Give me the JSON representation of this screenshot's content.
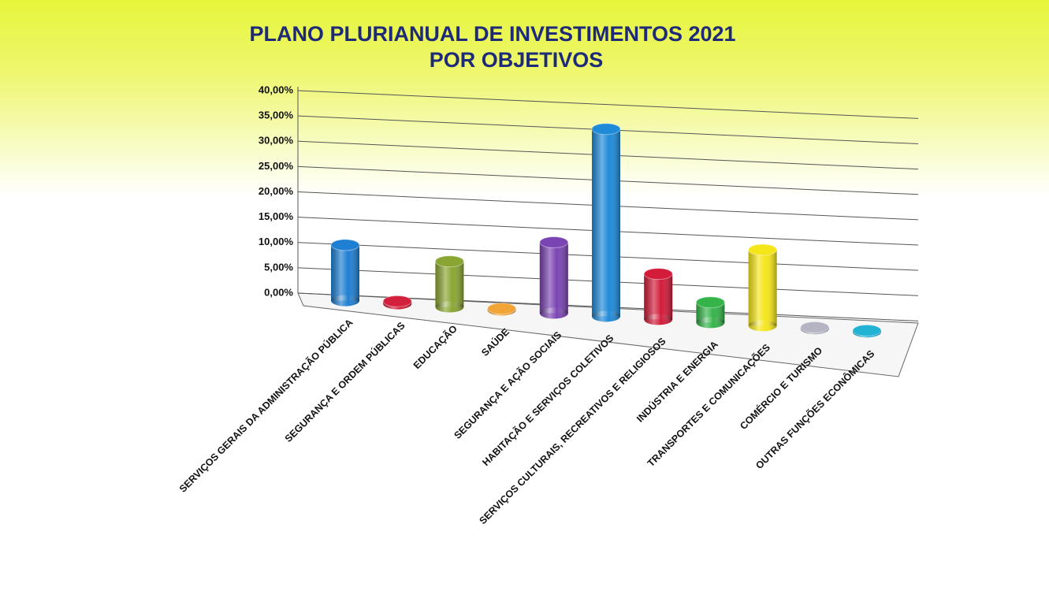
{
  "chart_data": {
    "type": "bar3d",
    "title": [
      "PLANO PLURIANUAL DE INVESTIMENTOS 2021",
      "POR OBJETIVOS"
    ],
    "categories": [
      "SERVIÇOS GERAIS DA ADMINISTRAÇÃO PÚBLICA",
      "SEGURANÇA E ORDEM PÚBLICAS",
      "EDUCAÇÃO",
      "SAÚDE",
      "SEGURANÇA E AÇÃO SOCIAIS",
      "HABITAÇÃO E SERVIÇOS COLETIVOS",
      "SERVIÇOS CULTURAIS, RECREATIVOS E RELIGIOSOS",
      "INDÚSTRIA E ENERGIA",
      "TRANSPORTES E COMUNICAÇÕES",
      "COMÉRCIO E TURISMO",
      "OUTRAS FUNÇÕES ECONÔMICAS"
    ],
    "values": [
      11,
      0.5,
      9,
      0.3,
      14,
      37,
      9,
      4,
      15,
      0.3,
      0.3
    ],
    "colors": [
      "#1f7fd2",
      "#d3203c",
      "#8aa632",
      "#f2a436",
      "#7b44b3",
      "#1f8ad8",
      "#d21c3a",
      "#35b44a",
      "#f5e61a",
      "#b4b4c4",
      "#22b2d4"
    ],
    "ylim": [
      0,
      40
    ],
    "yticks": [
      {
        "value": 0,
        "label": "0,00%"
      },
      {
        "value": 5,
        "label": "5,00%"
      },
      {
        "value": 10,
        "label": "10,00%"
      },
      {
        "value": 15,
        "label": "15,00%"
      },
      {
        "value": 20,
        "label": "20,00%"
      },
      {
        "value": 25,
        "label": "25,00%"
      },
      {
        "value": 30,
        "label": "30,00%"
      },
      {
        "value": 35,
        "label": "35,00%"
      },
      {
        "value": 40,
        "label": "40,00%"
      }
    ],
    "grid": true
  }
}
